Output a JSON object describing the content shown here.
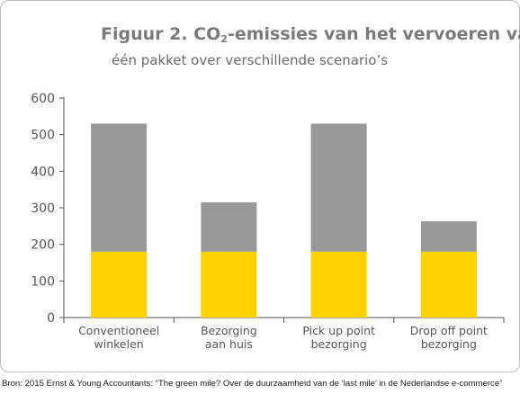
{
  "title_main": "Figuur 2. CO",
  "title_sub": "2",
  "title_rest": "-emissies van het vervoeren van",
  "subtitle": "één pakket over verschillende scenario’s",
  "source": "Bron: 2015 Ernst & Young Accountants: “The green mile? Over de duurzaamheid van de ‘last mile’ in de Nederlandse e-commerce”",
  "colors": {
    "base": "#FFD100",
    "top": "#999999",
    "axis": "#555555"
  },
  "chart_data": {
    "type": "bar",
    "stacked": true,
    "categories": [
      [
        "Conventioneel",
        "winkelen"
      ],
      [
        "Bezorging",
        "aan huis"
      ],
      [
        "Pick up point",
        "bezorging"
      ],
      [
        "Drop off point",
        "bezorging"
      ]
    ],
    "series": [
      {
        "values": [
          180,
          180,
          180,
          180
        ],
        "color": "#FFD100"
      },
      {
        "values": [
          350,
          135,
          350,
          83
        ],
        "color": "#999999"
      }
    ],
    "totals": [
      530,
      315,
      530,
      263
    ],
    "ylim": [
      0,
      600
    ],
    "yticks": [
      0,
      100,
      200,
      300,
      400,
      500,
      600
    ],
    "grid": false,
    "legend": "none"
  }
}
